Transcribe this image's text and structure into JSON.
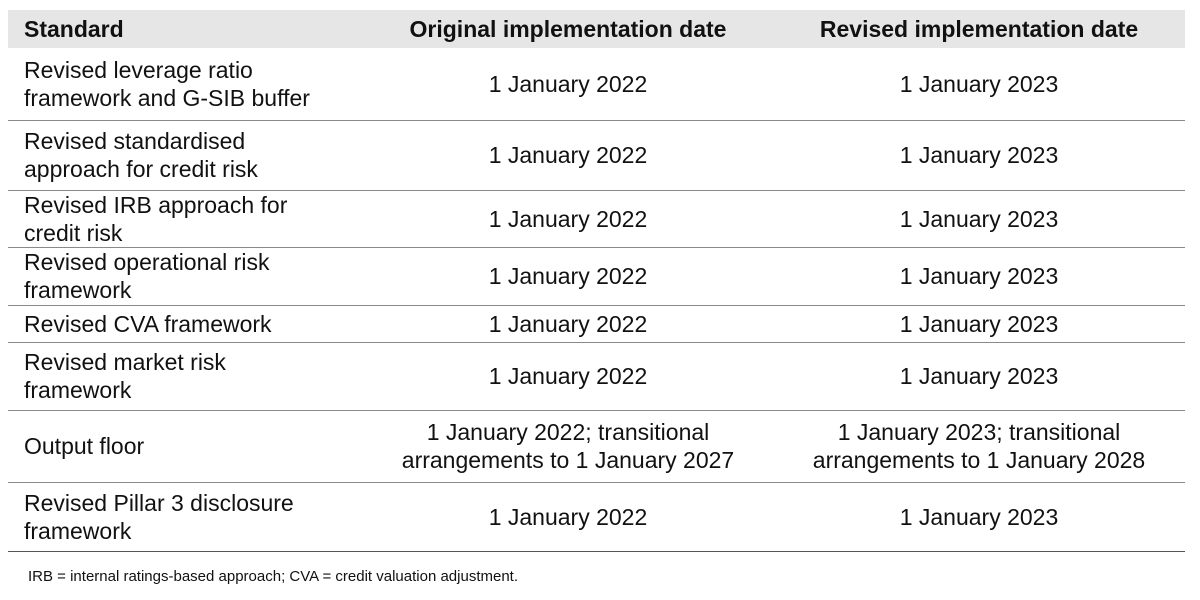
{
  "table": {
    "headers": [
      "Standard",
      "Original implementation date",
      "Revised implementation date"
    ],
    "rows": [
      {
        "standard": [
          "Revised leverage ratio",
          "framework and G-SIB buffer"
        ],
        "original": [
          "1 January 2022"
        ],
        "revised": [
          "1 January 2023"
        ]
      },
      {
        "standard": [
          "Revised standardised",
          "approach for credit risk"
        ],
        "original": [
          "1 January 2022"
        ],
        "revised": [
          "1 January 2023"
        ]
      },
      {
        "standard": [
          "Revised IRB approach for",
          "credit risk"
        ],
        "original": [
          "1 January 2022"
        ],
        "revised": [
          "1 January 2023"
        ]
      },
      {
        "standard": [
          "Revised operational risk",
          "framework"
        ],
        "original": [
          "1 January 2022"
        ],
        "revised": [
          "1 January 2023"
        ]
      },
      {
        "standard": [
          "Revised CVA framework"
        ],
        "original": [
          "1 January 2022"
        ],
        "revised": [
          "1 January 2023"
        ]
      },
      {
        "standard": [
          "Revised market risk",
          "framework"
        ],
        "original": [
          "1 January 2022"
        ],
        "revised": [
          "1 January 2023"
        ]
      },
      {
        "standard": [
          "Output floor"
        ],
        "original": [
          "1 January 2022; transitional",
          "arrangements to 1 January 2027"
        ],
        "revised": [
          "1 January 2023; transitional",
          "arrangements to 1 January 2028"
        ]
      },
      {
        "standard": [
          "Revised Pillar 3 disclosure",
          "framework"
        ],
        "original": [
          "1 January 2022"
        ],
        "revised": [
          "1 January 2023"
        ]
      }
    ]
  },
  "footnote": "IRB = internal ratings-based approach; CVA = credit valuation adjustment."
}
